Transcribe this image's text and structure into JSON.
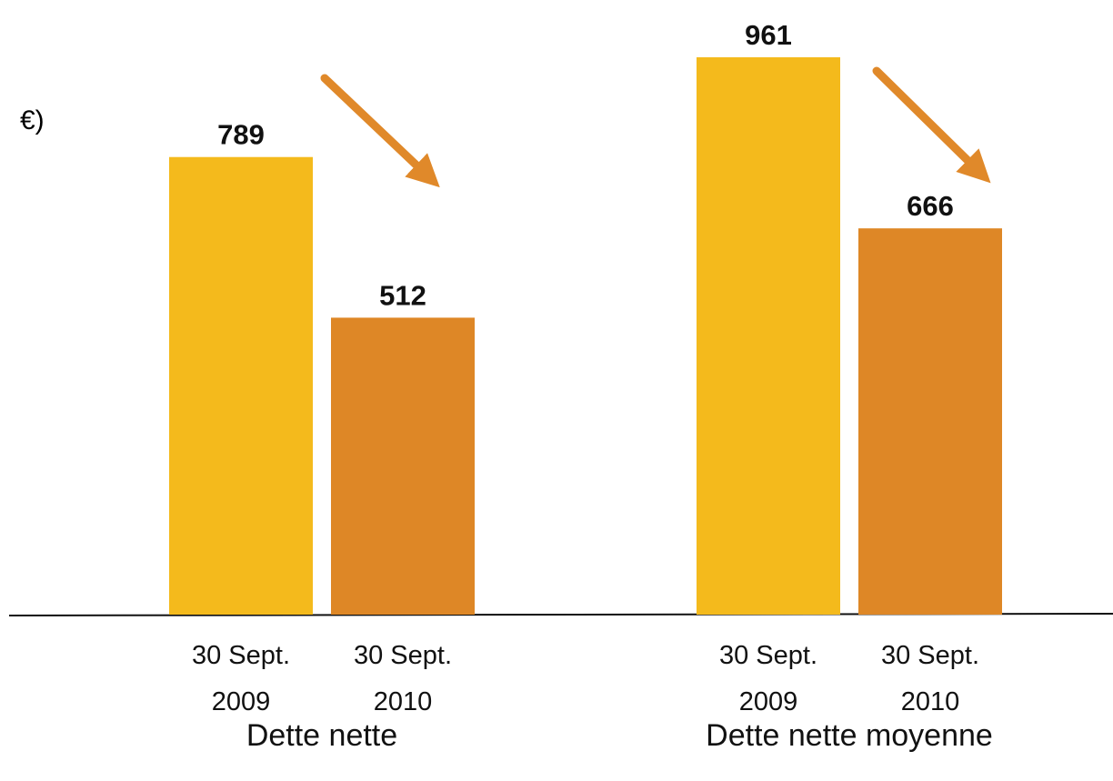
{
  "chart_data": {
    "type": "bar",
    "unit_label": "€)",
    "categories": [
      "Dette nette",
      "Dette nette moyenne"
    ],
    "series": [
      {
        "name": "30 Sept. 2009",
        "color": "#F4BA1C",
        "values": [
          789,
          961
        ]
      },
      {
        "name": "30 Sept. 2010",
        "color": "#DE8726",
        "values": [
          512,
          666
        ]
      }
    ]
  }
}
